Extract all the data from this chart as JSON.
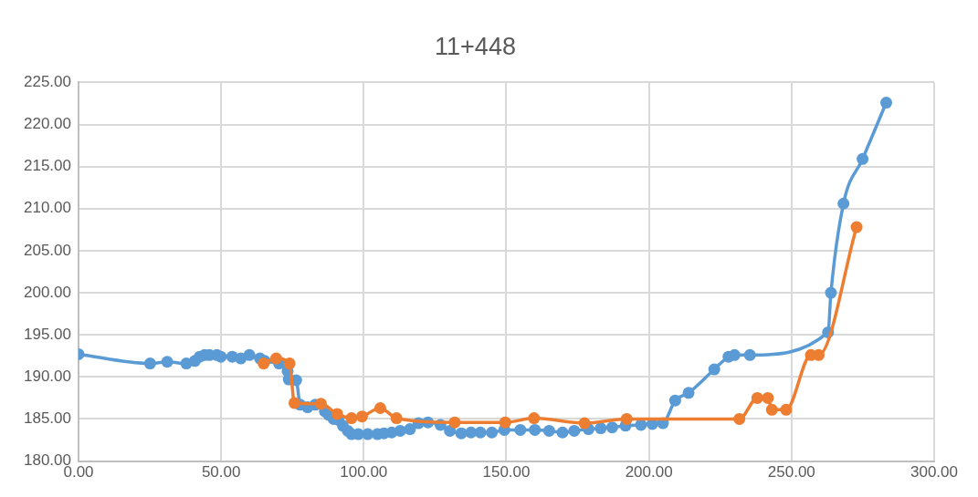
{
  "chart_data": {
    "type": "line",
    "title": "11+448",
    "marker": "circle",
    "grid": true,
    "legend": false,
    "xlim": [
      0,
      300
    ],
    "xticks": [
      {
        "value": 0,
        "label": "0.00"
      },
      {
        "value": 50,
        "label": "50.00"
      },
      {
        "value": 100,
        "label": "100.00"
      },
      {
        "value": 150,
        "label": "150.00"
      },
      {
        "value": 200,
        "label": "200.00"
      },
      {
        "value": 250,
        "label": "250.00"
      },
      {
        "value": 300,
        "label": "300.00"
      }
    ],
    "ylim": [
      180,
      225
    ],
    "yticks": [
      {
        "value": 180,
        "label": "180.00"
      },
      {
        "value": 185,
        "label": "185.00"
      },
      {
        "value": 190,
        "label": "190.00"
      },
      {
        "value": 195,
        "label": "195.00"
      },
      {
        "value": 200,
        "label": "200.00"
      },
      {
        "value": 205,
        "label": "205.00"
      },
      {
        "value": 210,
        "label": "210.00"
      },
      {
        "value": 215,
        "label": "215.00"
      },
      {
        "value": 220,
        "label": "220.00"
      },
      {
        "value": 225,
        "label": "225.00"
      }
    ],
    "series": [
      {
        "color": "#5b9bd5",
        "x": [
          0,
          25.1,
          31.1,
          37.8,
          40.8,
          42.5,
          44.2,
          45.9,
          48.5,
          49.9,
          53.9,
          56.9,
          59.9,
          63.6,
          65.3,
          70.3,
          73.3,
          73.7,
          76.3,
          77.7,
          80.3,
          83,
          86.4,
          87.7,
          89.4,
          91.1,
          92.7,
          94.4,
          95.7,
          98.1,
          101.4,
          104.8,
          107.1,
          109.8,
          112.8,
          116.2,
          119.2,
          122.5,
          126.9,
          130.2,
          134.2,
          137.6,
          140.9,
          144.9,
          149.3,
          154.9,
          160,
          165,
          169.7,
          173.8,
          178.8,
          183.1,
          187.1,
          191.8,
          197.2,
          201.2,
          204.9,
          209.2,
          213.9,
          222.9,
          227.9,
          230,
          235.4,
          262.8,
          263.8,
          268.2,
          274.9,
          283.2
        ],
        "values": [
          192.7,
          191.6,
          191.8,
          191.6,
          191.9,
          192.4,
          192.6,
          192.6,
          192.6,
          192.4,
          192.4,
          192.2,
          192.6,
          192.2,
          191.9,
          191.6,
          190.7,
          189.7,
          189.6,
          186.7,
          186.4,
          186.7,
          185.9,
          185.5,
          185,
          184.9,
          184.2,
          183.6,
          183.2,
          183.2,
          183.2,
          183.2,
          183.3,
          183.4,
          183.6,
          183.8,
          184.5,
          184.6,
          184.3,
          183.6,
          183.3,
          183.4,
          183.4,
          183.4,
          183.7,
          183.7,
          183.7,
          183.6,
          183.4,
          183.6,
          183.8,
          183.9,
          184,
          184.2,
          184.3,
          184.4,
          184.5,
          187.2,
          188.1,
          190.9,
          192.4,
          192.6,
          192.6,
          195.3,
          200,
          210.6,
          215.9,
          222.6
        ]
      },
      {
        "color": "#ed7d31",
        "x": [
          64.9,
          69.3,
          74,
          75.7,
          85,
          90.7,
          95.7,
          99.4,
          105.8,
          111.5,
          131.9,
          149.6,
          159.7,
          177.4,
          192.2,
          231.7,
          238,
          241.7,
          243.1,
          248.1,
          256.8,
          259.5,
          272.8
        ],
        "values": [
          191.6,
          192.2,
          191.6,
          186.9,
          186.8,
          185.6,
          185.1,
          185.3,
          186.3,
          185.1,
          184.6,
          184.6,
          185.1,
          184.5,
          185,
          185,
          187.5,
          187.5,
          186.1,
          186.1,
          192.6,
          192.6,
          207.8
        ]
      }
    ]
  }
}
